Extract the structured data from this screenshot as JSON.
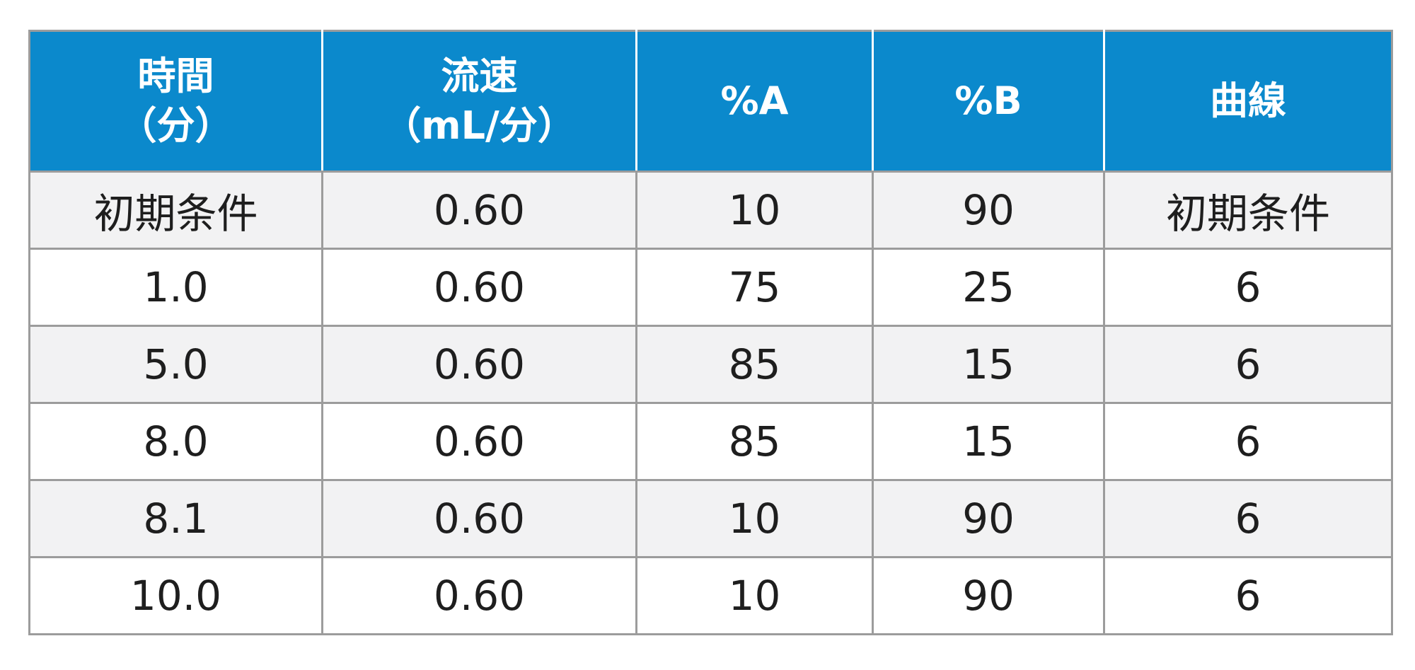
{
  "table": {
    "headers": [
      {
        "line1": "時間",
        "line2": "（分）"
      },
      {
        "line1": "流速",
        "line2": "（mL/分）"
      },
      {
        "line1": "%A",
        "line2": ""
      },
      {
        "line1": "%B",
        "line2": ""
      },
      {
        "line1": "曲線",
        "line2": ""
      }
    ],
    "rows": [
      [
        "初期条件",
        "0.60",
        "10",
        "90",
        "初期条件"
      ],
      [
        "1.0",
        "0.60",
        "75",
        "25",
        "6"
      ],
      [
        "5.0",
        "0.60",
        "85",
        "15",
        "6"
      ],
      [
        "8.0",
        "0.60",
        "85",
        "15",
        "6"
      ],
      [
        "8.1",
        "0.60",
        "10",
        "90",
        "6"
      ],
      [
        "10.0",
        "0.60",
        "10",
        "90",
        "6"
      ]
    ]
  },
  "colors": {
    "header_bg": "#0b89cc",
    "header_text": "#ffffff",
    "row_alt_bg": "#f2f2f3",
    "row_bg": "#ffffff",
    "border": "#9c9c9c",
    "text": "#1e1e1e"
  }
}
